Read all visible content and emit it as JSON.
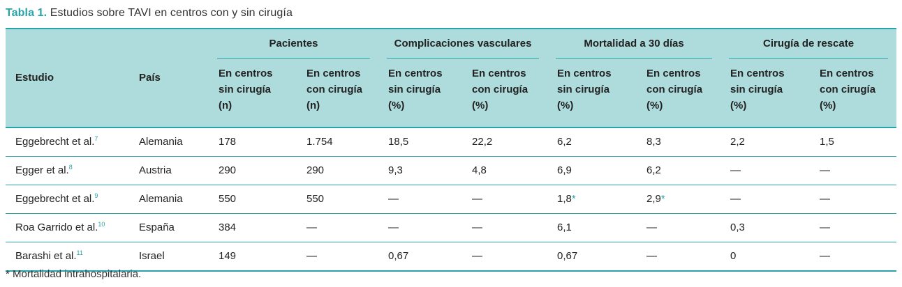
{
  "caption": {
    "label": "Tabla 1.",
    "text": "Estudios sobre TAVI en centros con y sin cirugía"
  },
  "header": {
    "estudio": "Estudio",
    "pais": "País",
    "groups": [
      "Pacientes",
      "Complicaciones vasculares",
      "Mortalidad a 30 días",
      "Cirugía de rescate"
    ],
    "subs": [
      [
        "En centros",
        "sin cirugía",
        "(n)"
      ],
      [
        "En centros",
        "con cirugía",
        "(n)"
      ],
      [
        "En centros",
        "sin cirugía",
        "(%)"
      ],
      [
        "En centros",
        "con cirugía",
        "(%)"
      ],
      [
        "En centros",
        "sin cirugía",
        "(%)"
      ],
      [
        "En centros",
        "con cirugía",
        "(%)"
      ],
      [
        "En centros",
        "sin cirugía",
        "(%)"
      ],
      [
        "En centros",
        "con cirugía",
        "(%)"
      ]
    ]
  },
  "rows": [
    {
      "estudio": "Eggebrecht et al.",
      "ref": "7",
      "pais": "Alemania",
      "v": [
        "178",
        "1.754",
        "18,5",
        "22,2",
        "6,2",
        "8,3",
        "2,2",
        "1,5"
      ]
    },
    {
      "estudio": "Egger et al.",
      "ref": "8",
      "pais": "Austria",
      "v": [
        "290",
        "290",
        "9,3",
        "4,8",
        "6,9",
        "6,2",
        "—",
        "—"
      ]
    },
    {
      "estudio": "Eggebrecht et al.",
      "ref": "9",
      "pais": "Alemania",
      "v": [
        "550",
        "550",
        "—",
        "—",
        "1,8",
        "2,9",
        "—",
        "—"
      ],
      "ast": [
        "",
        "",
        "",
        "",
        "*",
        "*",
        "",
        ""
      ]
    },
    {
      "estudio": "Roa Garrido et al.",
      "ref": "10",
      "pais": "España",
      "v": [
        "384",
        "—",
        "—",
        "—",
        "6,1",
        "—",
        "0,3",
        "—"
      ]
    },
    {
      "estudio": "Barashi et al.",
      "ref": "11",
      "pais": "Israel",
      "v": [
        "149",
        "—",
        "0,67",
        "—",
        "0,67",
        "—",
        "0",
        "—"
      ]
    }
  ],
  "footnote": "* Mortalidad intrahospitalaria."
}
